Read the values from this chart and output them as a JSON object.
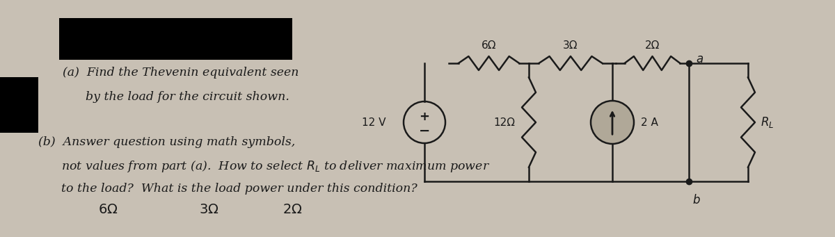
{
  "bg_color": "#c8c0b4",
  "paper_color": "#e8e2d6",
  "line_color": "#1a1a1a",
  "blackout_color": "#000000",
  "voltage_label": "12 V",
  "r1_label": "6Ω",
  "r2_label": "3Ω",
  "r3_label": "2Ω",
  "r4_label": "12Ω",
  "r5_label": "R_L",
  "cs_label": "2 A",
  "node_a": "a",
  "node_b": "b",
  "text_part_a_1": "(a)  Find the Thevenin equivalent seen",
  "text_part_a_2": "      by the load for the circuit shown.",
  "text_part_b_1": "(b)  Answer question using math symbols,",
  "text_part_b_2": "      not values from part (a).  How to select R_L to deliver maximum power",
  "text_part_b_3": "      to the load?  What is the load power under this condition?",
  "handwritten_1": "6Ω",
  "handwritten_2": "3Ω",
  "handwritten_3": "2Ω"
}
